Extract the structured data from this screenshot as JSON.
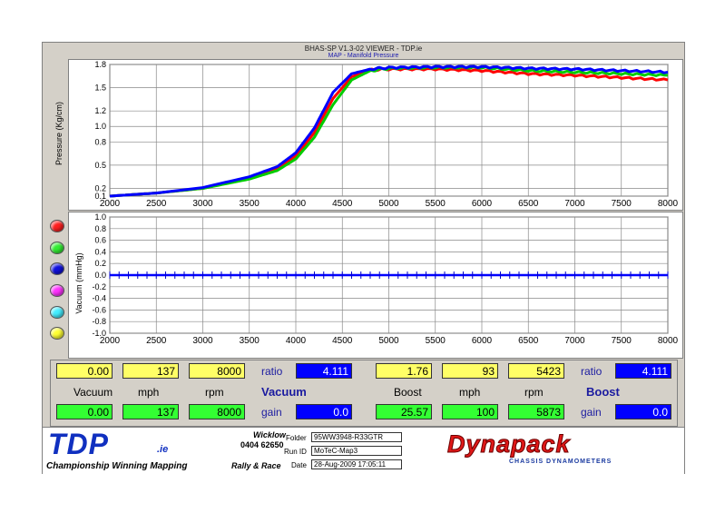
{
  "window": {
    "title": "BHAS-SP V1.3-02 VIEWER - TDP.ie",
    "subtitle": "MAP - Manifold Pressure"
  },
  "charts": {
    "top": {
      "ylabel": "Pressure (Kg/cm)"
    },
    "bottom": {
      "ylabel": "Vacuum (mmHg)"
    }
  },
  "chart_data": [
    {
      "type": "line",
      "title": "MAP - Manifold Pressure",
      "xlabel": "",
      "ylabel": "Pressure (Kg/cm)",
      "xlim": [
        2000,
        8000
      ],
      "ylim": [
        0.1,
        1.8
      ],
      "x_ticks": [
        "2000",
        "2500",
        "3000",
        "3500",
        "4000",
        "4500",
        "5000",
        "5500",
        "6000",
        "6500",
        "7000",
        "7500",
        "8000"
      ],
      "y_ticks": [
        "1.8",
        "1.5",
        "1.2",
        "1.0",
        "0.8",
        "0.5",
        "0.2",
        "0.1"
      ],
      "grid": true,
      "series": [
        {
          "color": "#ff0000",
          "x": [
            2000,
            2500,
            3000,
            3500,
            3800,
            4000,
            4200,
            4400,
            4600,
            4800,
            5000,
            5500,
            6000,
            6500,
            7000,
            7500,
            8000
          ],
          "values": [
            0.1,
            0.14,
            0.2,
            0.33,
            0.46,
            0.62,
            0.92,
            1.36,
            1.64,
            1.73,
            1.74,
            1.74,
            1.72,
            1.68,
            1.66,
            1.63,
            1.6
          ]
        },
        {
          "color": "#00cc00",
          "x": [
            2000,
            2500,
            3000,
            3500,
            3800,
            4000,
            4200,
            4400,
            4600,
            4800,
            5000,
            5500,
            6000,
            6500,
            7000,
            7500,
            8000
          ],
          "values": [
            0.1,
            0.14,
            0.2,
            0.32,
            0.43,
            0.58,
            0.86,
            1.28,
            1.6,
            1.72,
            1.75,
            1.76,
            1.76,
            1.72,
            1.7,
            1.68,
            1.66
          ]
        },
        {
          "color": "#0000ff",
          "x": [
            2000,
            2500,
            3000,
            3500,
            3800,
            4000,
            4200,
            4400,
            4600,
            4800,
            5000,
            5500,
            6000,
            6500,
            7000,
            7500,
            8000
          ],
          "values": [
            0.1,
            0.14,
            0.21,
            0.35,
            0.48,
            0.66,
            0.98,
            1.44,
            1.68,
            1.74,
            1.76,
            1.77,
            1.77,
            1.75,
            1.74,
            1.72,
            1.7
          ]
        }
      ]
    },
    {
      "type": "line",
      "title": "",
      "xlabel": "",
      "ylabel": "Vacuum (mmHg)",
      "xlim": [
        2000,
        8000
      ],
      "ylim": [
        -1.0,
        1.0
      ],
      "x_ticks": [
        "2000",
        "2500",
        "3000",
        "3500",
        "4000",
        "4500",
        "5000",
        "5500",
        "6000",
        "6500",
        "7000",
        "7500",
        "8000"
      ],
      "y_ticks": [
        "1.0",
        "0.8",
        "0.6",
        "0.4",
        "0.2",
        "0.0",
        "-0.2",
        "-0.4",
        "-0.6",
        "-0.8",
        "-1.0"
      ],
      "grid": true,
      "series": [
        {
          "color": "#0000ff",
          "x": [
            2000,
            8000
          ],
          "values": [
            0.0,
            0.0
          ]
        }
      ]
    }
  ],
  "legend_leds": [
    {
      "name": "red",
      "color": "#ff2020"
    },
    {
      "name": "green",
      "color": "#33ee33"
    },
    {
      "name": "blue",
      "color": "#1010dd"
    },
    {
      "name": "magenta",
      "color": "#ff33ff"
    },
    {
      "name": "cyan",
      "color": "#44eeff"
    },
    {
      "name": "yellow",
      "color": "#ffff33"
    }
  ],
  "vacuum": {
    "row1": {
      "vacuum": "0.00",
      "mph": "137",
      "rpm": "8000",
      "ratio_label": "ratio",
      "ratio": "4.111"
    },
    "labels": {
      "vacuum": "Vacuum",
      "mph": "mph",
      "rpm": "rpm",
      "title": "Vacuum"
    },
    "row2": {
      "vacuum": "0.00",
      "mph": "137",
      "rpm": "8000",
      "gain_label": "gain",
      "gain": "0.0"
    }
  },
  "boost": {
    "row1": {
      "boost": "1.76",
      "mph": "93",
      "rpm": "5423",
      "ratio_label": "ratio",
      "ratio": "4.111"
    },
    "labels": {
      "boost": "Boost",
      "mph": "mph",
      "rpm": "rpm",
      "title": "Boost"
    },
    "row2": {
      "boost": "25.57",
      "mph": "100",
      "rpm": "5873",
      "gain_label": "gain",
      "gain": "0.0"
    }
  },
  "footer": {
    "logo": "TDP",
    "logo_suffix": ".ie",
    "tagline": "Championship Winning Mapping",
    "tagline2": "Rally & Race",
    "location": "Wicklow",
    "phone": "0404 62650",
    "folder_label": "Folder",
    "folder": "95WW3948-R33GTR",
    "runid_label": "Run ID",
    "runid": "MoTeC-Map3",
    "date_label": "Date",
    "date": "28-Aug-2009  17:05:11",
    "brand": "Dynapack",
    "brand_sub": "CHASSIS  DYNAMOMETERS"
  }
}
